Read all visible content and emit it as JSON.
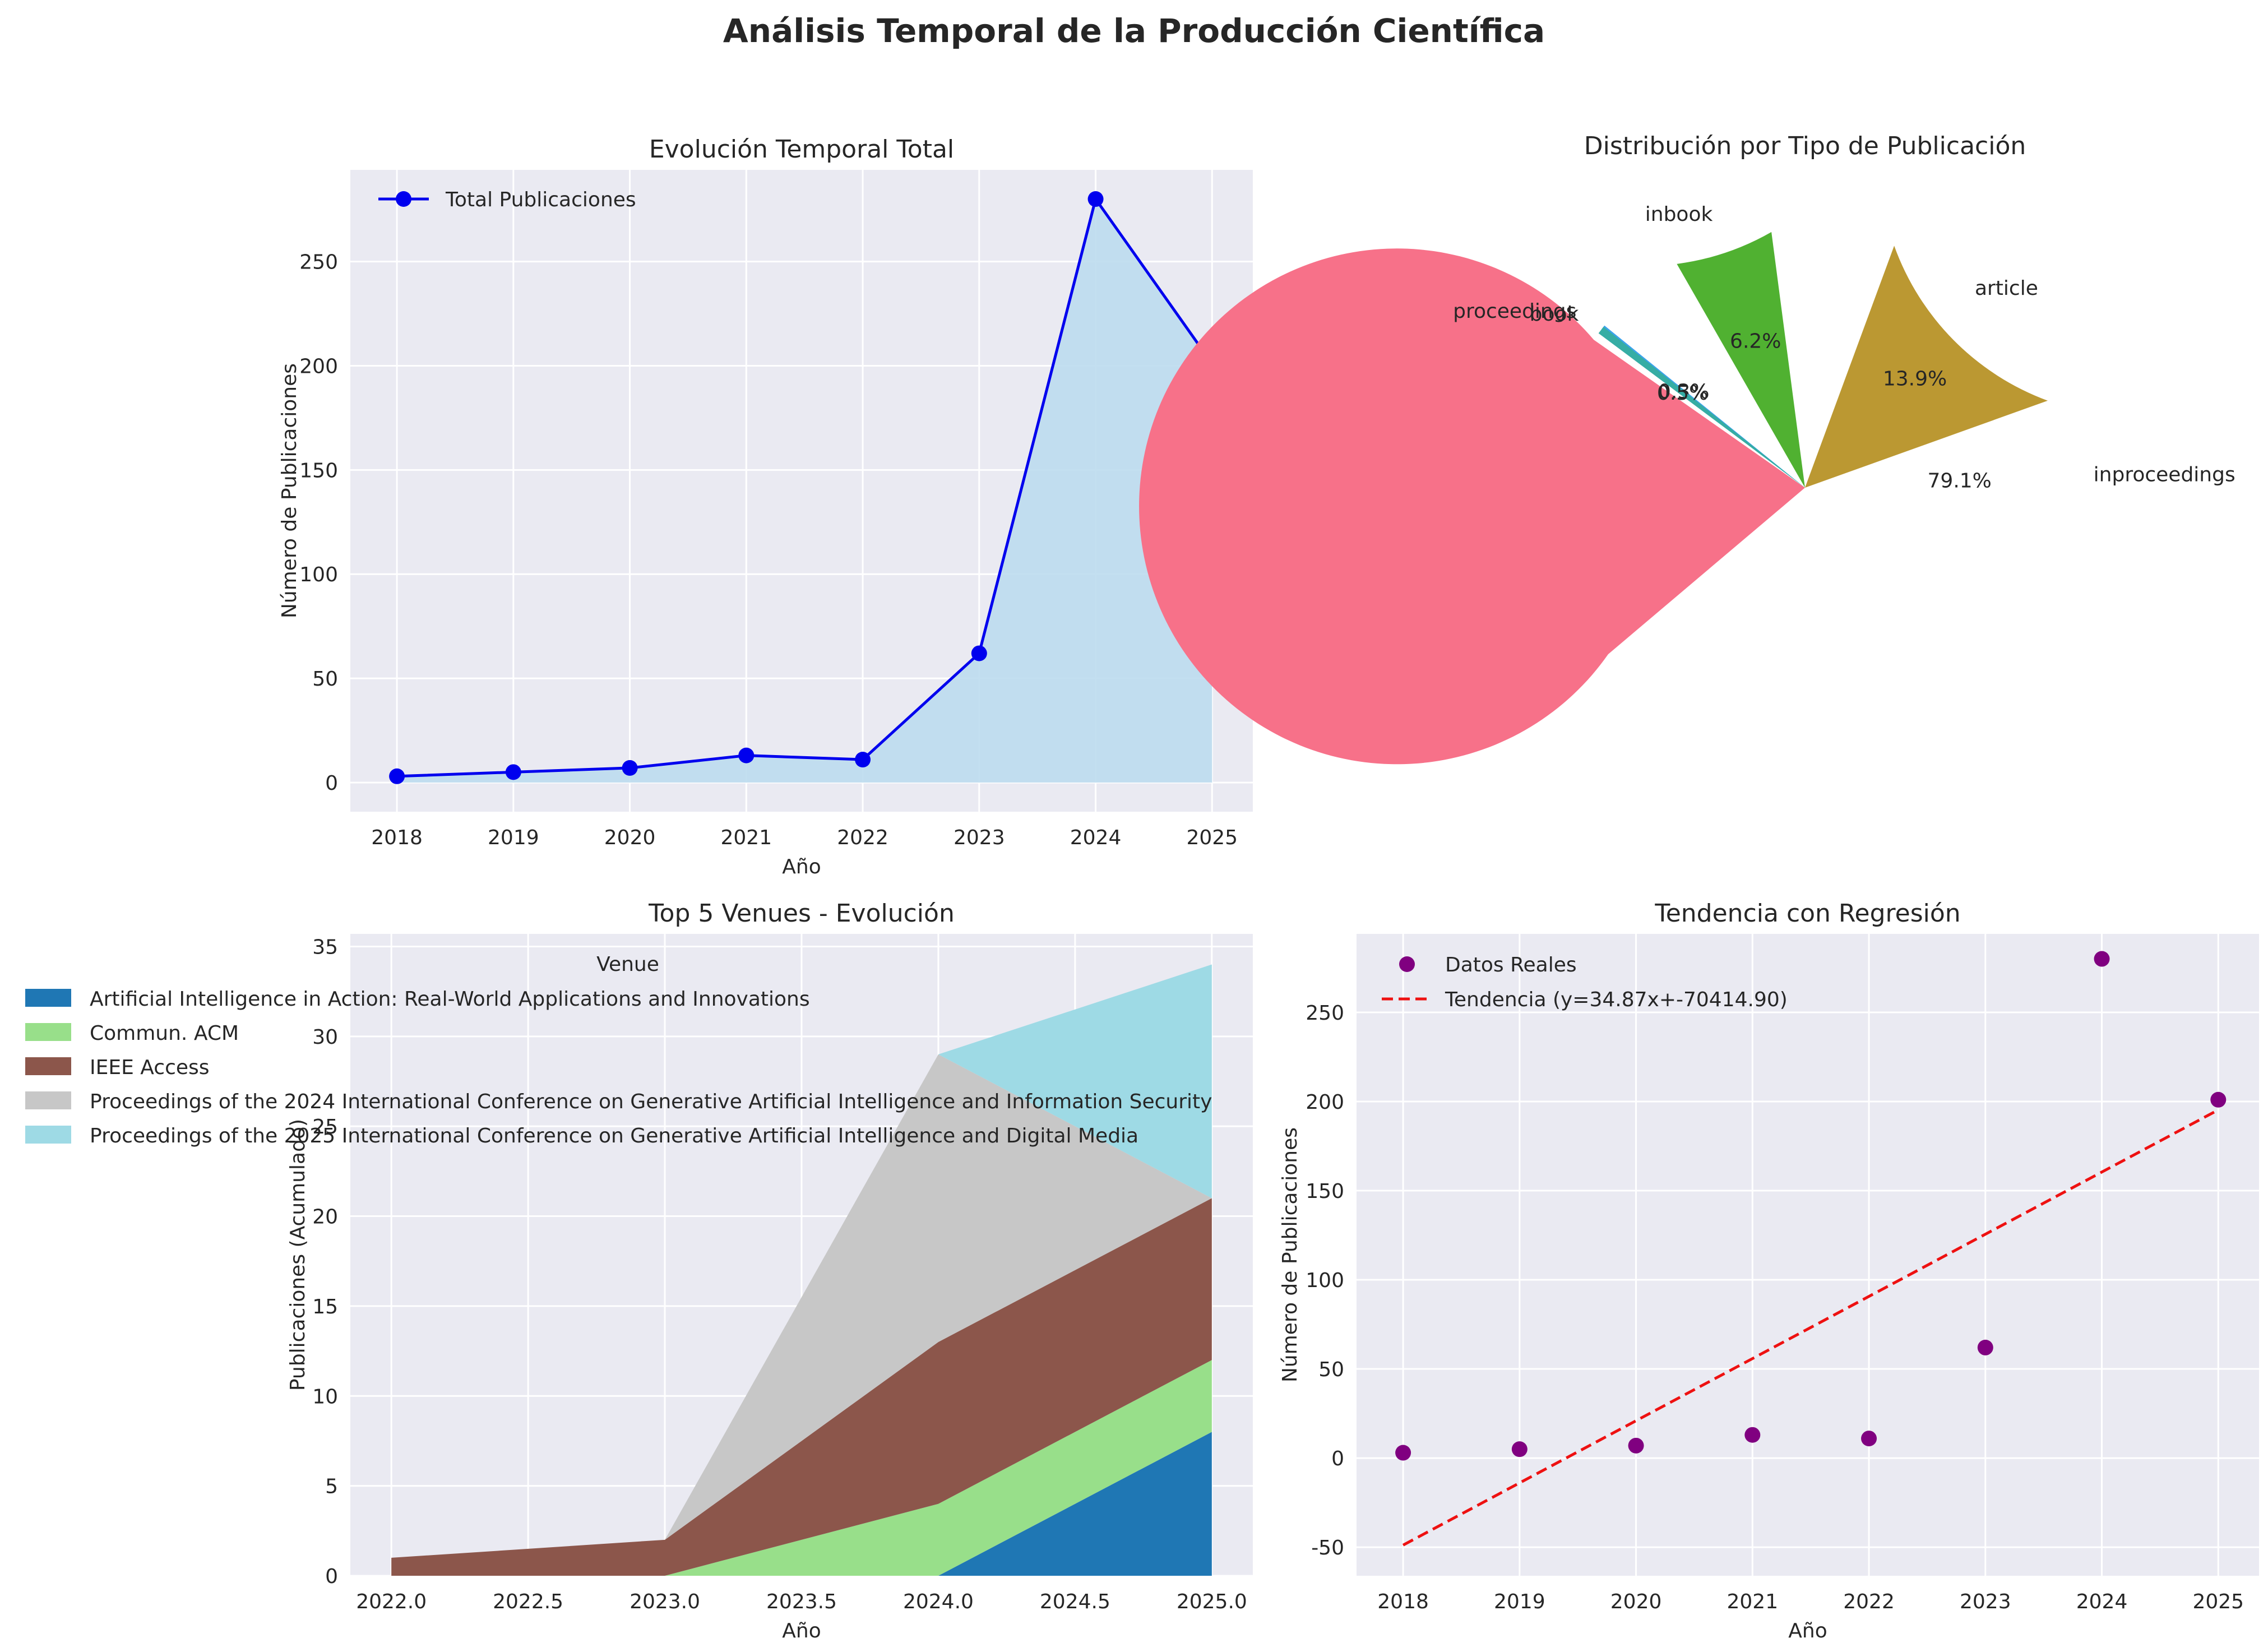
{
  "figure_title": "Análisis Temporal de la Producción Científica",
  "colors": {
    "panel_bg": "#eaeaf2",
    "grid": "#ffffff",
    "line_blue": "#0000ee",
    "area_fill": "#bcdcee",
    "scatter": "#800080",
    "trend": "#ee1111"
  },
  "chart_data": [
    {
      "id": "total",
      "type": "line",
      "title": "Evolución Temporal Total",
      "xlabel": "Año",
      "ylabel": "Número de Publicaciones",
      "x": [
        2018,
        2019,
        2020,
        2021,
        2022,
        2023,
        2024,
        2025
      ],
      "series": [
        {
          "name": "Total Publicaciones",
          "values": [
            3,
            5,
            7,
            13,
            11,
            62,
            280,
            201
          ]
        }
      ],
      "xticks": [
        "2018",
        "2019",
        "2020",
        "2021",
        "2022",
        "2023",
        "2024",
        "2025"
      ],
      "yticks": [
        0,
        50,
        100,
        150,
        200,
        250
      ],
      "xlim": [
        2017.6,
        2025.35
      ],
      "ylim": [
        -14,
        294
      ],
      "legend": "upper-left",
      "grid": true,
      "filled_area": true
    },
    {
      "id": "types",
      "type": "pie",
      "title": "Distribución por Tipo de Publicación",
      "slices": [
        {
          "label": "inproceedings",
          "value": 79.1,
          "pct": "79.1%",
          "color": "#f77189"
        },
        {
          "label": "article",
          "value": 13.9,
          "pct": "13.9%",
          "color": "#bb9832"
        },
        {
          "label": "inbook",
          "value": 6.2,
          "pct": "6.2%",
          "color": "#50b131"
        },
        {
          "label": "proceedings",
          "value": 0.5,
          "pct": "0.5%",
          "color": "#36ada4"
        },
        {
          "label": "book",
          "value": 0.3,
          "pct": "0.3%",
          "color": "#3ba3ec"
        }
      ]
    },
    {
      "id": "venues",
      "type": "area",
      "title": "Top 5 Venues - Evolución",
      "xlabel": "Año",
      "ylabel": "Publicaciones (Acumulado)",
      "legend_title": "Venue",
      "x": [
        2022,
        2023,
        2024,
        2025
      ],
      "series": [
        {
          "name": "Artificial Intelligence in Action: Real-World Applications and Innovations",
          "values": [
            0,
            0,
            0,
            8
          ],
          "color": "#1f77b4"
        },
        {
          "name": "Commun. ACM",
          "values": [
            0,
            0,
            4,
            4
          ],
          "color": "#98df8a"
        },
        {
          "name": "IEEE Access",
          "values": [
            1,
            2,
            9,
            9
          ],
          "color": "#8c564b"
        },
        {
          "name": "Proceedings of the 2024 International Conference on Generative Artificial Intelligence and Information Security",
          "values": [
            0,
            0,
            16,
            0
          ],
          "color": "#c7c7c7"
        },
        {
          "name": "Proceedings of the 2025 International Conference on Generative Artificial Intelligence and Digital Media",
          "values": [
            0,
            0,
            0,
            13
          ],
          "color": "#9edae5"
        }
      ],
      "xticks": [
        "2022.0",
        "2022.5",
        "2023.0",
        "2023.5",
        "2024.0",
        "2024.5",
        "2025.0"
      ],
      "yticks": [
        0,
        5,
        10,
        15,
        20,
        25,
        30,
        35
      ],
      "xlim": [
        2021.85,
        2025.15
      ],
      "ylim": [
        0,
        35.7
      ],
      "legend": "upper-left",
      "grid": true
    },
    {
      "id": "trend",
      "type": "scatter",
      "title": "Tendencia con Regresión",
      "xlabel": "Año",
      "ylabel": "Número de Publicaciones",
      "x": [
        2018,
        2019,
        2020,
        2021,
        2022,
        2023,
        2024,
        2025
      ],
      "series": [
        {
          "name": "Datos Reales",
          "values": [
            3,
            5,
            7,
            13,
            11,
            62,
            280,
            201
          ]
        },
        {
          "name": "Tendencia (y=34.87x+-70414.90)",
          "slope": 34.87,
          "intercept": -70414.9,
          "line_values": [
            -48.8,
            195.3
          ]
        }
      ],
      "xticks": [
        "2018",
        "2019",
        "2020",
        "2021",
        "2022",
        "2023",
        "2024",
        "2025"
      ],
      "yticks": [
        -50,
        0,
        50,
        100,
        150,
        200,
        250
      ],
      "xlim": [
        2017.6,
        2025.35
      ],
      "ylim": [
        -66,
        294
      ],
      "legend": "upper-left",
      "grid": true
    }
  ]
}
